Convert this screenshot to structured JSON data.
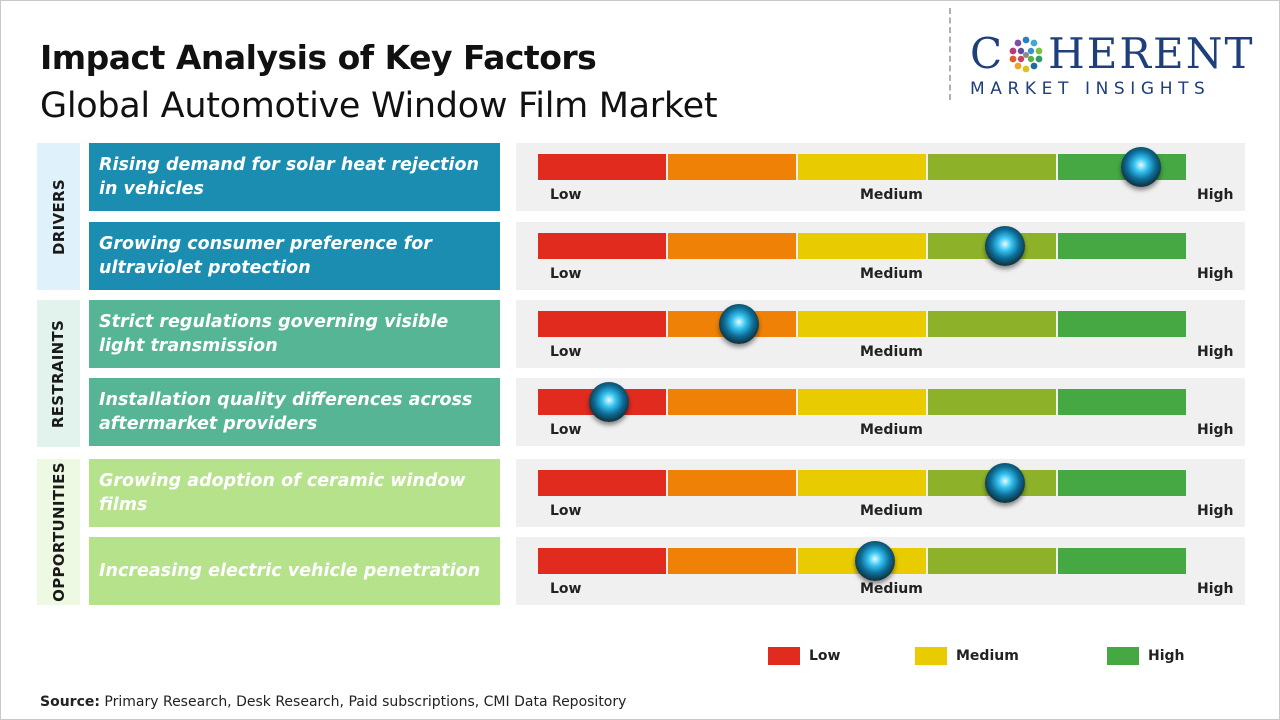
{
  "title": "Impact Analysis of Key Factors",
  "subtitle": "Global Automotive Window Film Market",
  "logo": {
    "main_pre": "C",
    "main_post": "HERENT",
    "sub": "MARKET INSIGHTS"
  },
  "colors": {
    "segments": [
      "#e22b1f",
      "#ef8206",
      "#e8cb00",
      "#8db22a",
      "#45a843"
    ],
    "drivers_factor": "#1a8db0",
    "drivers_cat": "#dff1fa",
    "restraints_factor": "#55b595",
    "restraints_cat": "#e1f3ec",
    "opportunities_factor": "#b6e28c",
    "opportunities_cat": "#eef9e4",
    "legend_low": "#e22b1f",
    "legend_medium": "#e8cb00",
    "legend_high": "#45a843"
  },
  "chart_data": {
    "type": "bar",
    "scale": {
      "labels": [
        "Low",
        "Medium",
        "High"
      ],
      "range": [
        0,
        1
      ]
    },
    "categories": [
      {
        "name": "DRIVERS",
        "factors": [
          {
            "text": "Rising demand for solar heat rejection in vehicles",
            "impact": 0.93
          },
          {
            "text": "Growing consumer preference for ultraviolet protection",
            "impact": 0.72
          }
        ]
      },
      {
        "name": "RESTRAINTS",
        "factors": [
          {
            "text": "Strict regulations governing visible light transmission",
            "impact": 0.31
          },
          {
            "text": "Installation quality differences across aftermarket providers",
            "impact": 0.11
          }
        ]
      },
      {
        "name": "OPPORTUNITIES",
        "factors": [
          {
            "text": "Growing adoption of ceramic window films",
            "impact": 0.72
          },
          {
            "text": "Increasing electric vehicle penetration",
            "impact": 0.52
          }
        ]
      }
    ]
  },
  "legend": [
    {
      "label": "Low",
      "color_key": "legend_low"
    },
    {
      "label": "Medium",
      "color_key": "legend_medium"
    },
    {
      "label": "High",
      "color_key": "legend_high"
    }
  ],
  "source": {
    "label": "Source:",
    "text": " Primary Research, Desk Research, Paid subscriptions, CMI Data Repository"
  }
}
